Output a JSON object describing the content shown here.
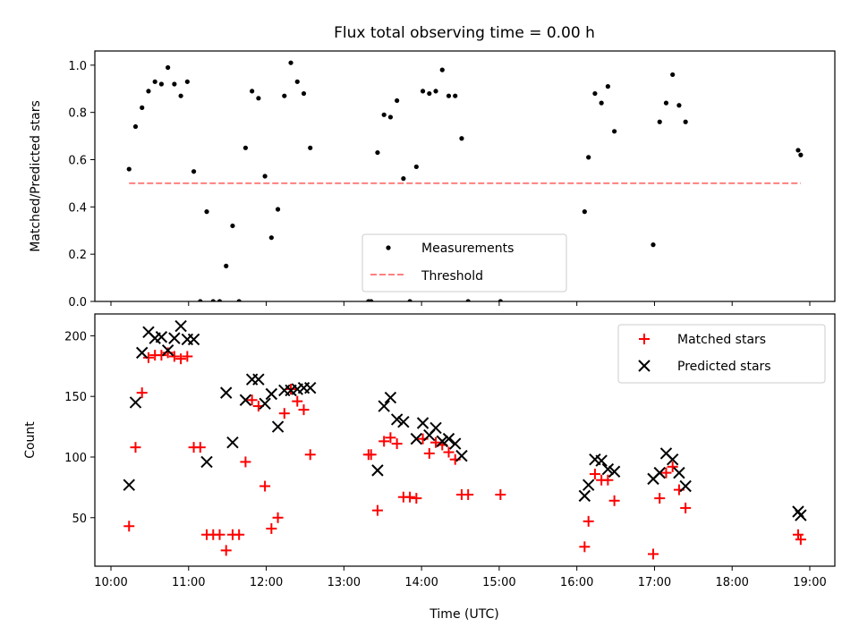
{
  "chart_data": [
    {
      "type": "scatter",
      "title": "Flux total observing time = 0.00 h",
      "ylabel": "Matched/Predicted stars",
      "ylim": [
        0,
        1.06
      ],
      "yticks": [
        0.0,
        0.2,
        0.4,
        0.6,
        0.8,
        1.0
      ],
      "yticklabels": [
        "0.0",
        "0.2",
        "0.4",
        "0.6",
        "0.8",
        "1.0"
      ],
      "xlim": [
        "10:00",
        "19:00"
      ],
      "legend_position": "lower-center",
      "series": [
        {
          "name": "Measurements",
          "marker": "dot",
          "color": "#000000",
          "points": [
            [
              "10:14",
              0.56
            ],
            [
              "10:19",
              0.74
            ],
            [
              "10:24",
              0.82
            ],
            [
              "10:29",
              0.89
            ],
            [
              "10:34",
              0.93
            ],
            [
              "10:39",
              0.92
            ],
            [
              "10:44",
              0.99
            ],
            [
              "10:49",
              0.92
            ],
            [
              "10:54",
              0.87
            ],
            [
              "10:59",
              0.93
            ],
            [
              "11:04",
              0.55
            ],
            [
              "11:09",
              0.0
            ],
            [
              "11:14",
              0.38
            ],
            [
              "11:19",
              0.0
            ],
            [
              "11:24",
              0.0
            ],
            [
              "11:29",
              0.15
            ],
            [
              "11:34",
              0.32
            ],
            [
              "11:39",
              0.0
            ],
            [
              "11:44",
              0.65
            ],
            [
              "11:49",
              0.89
            ],
            [
              "11:54",
              0.86
            ],
            [
              "11:59",
              0.53
            ],
            [
              "12:04",
              0.27
            ],
            [
              "12:09",
              0.39
            ],
            [
              "12:14",
              0.87
            ],
            [
              "12:19",
              1.01
            ],
            [
              "12:24",
              0.93
            ],
            [
              "12:29",
              0.88
            ],
            [
              "12:34",
              0.65
            ],
            [
              "13:19",
              0.0
            ],
            [
              "13:21",
              0.0
            ],
            [
              "13:26",
              0.63
            ],
            [
              "13:31",
              0.79
            ],
            [
              "13:36",
              0.78
            ],
            [
              "13:41",
              0.85
            ],
            [
              "13:46",
              0.52
            ],
            [
              "13:51",
              0.0
            ],
            [
              "13:56",
              0.57
            ],
            [
              "14:01",
              0.89
            ],
            [
              "14:06",
              0.88
            ],
            [
              "14:11",
              0.89
            ],
            [
              "14:16",
              0.98
            ],
            [
              "14:21",
              0.87
            ],
            [
              "14:26",
              0.87
            ],
            [
              "14:31",
              0.69
            ],
            [
              "14:36",
              0.0
            ],
            [
              "15:01",
              0.0
            ],
            [
              "16:06",
              0.38
            ],
            [
              "16:09",
              0.61
            ],
            [
              "16:14",
              0.88
            ],
            [
              "16:19",
              0.84
            ],
            [
              "16:24",
              0.91
            ],
            [
              "16:29",
              0.72
            ],
            [
              "16:59",
              0.24
            ],
            [
              "17:04",
              0.76
            ],
            [
              "17:09",
              0.84
            ],
            [
              "17:14",
              0.96
            ],
            [
              "17:19",
              0.83
            ],
            [
              "17:24",
              0.76
            ],
            [
              "18:51",
              0.64
            ],
            [
              "18:53",
              0.62
            ]
          ]
        },
        {
          "name": "Threshold",
          "marker": "dashed-line",
          "color": "#ff7f7f",
          "points": [
            [
              "10:14",
              0.5
            ],
            [
              "18:53",
              0.5
            ]
          ]
        }
      ]
    },
    {
      "type": "scatter",
      "xlabel": "Time (UTC)",
      "ylabel": "Count",
      "ylim": [
        10,
        218
      ],
      "yticks": [
        50,
        100,
        150,
        200
      ],
      "yticklabels": [
        "50",
        "100",
        "150",
        "200"
      ],
      "xlim": [
        "10:00",
        "19:00"
      ],
      "xticklabels": [
        "10:00",
        "11:00",
        "12:00",
        "13:00",
        "14:00",
        "15:00",
        "16:00",
        "17:00",
        "18:00",
        "19:00"
      ],
      "legend_position": "upper-right",
      "series": [
        {
          "name": "Matched stars",
          "marker": "plus",
          "color": "#ff0000",
          "points": [
            [
              "10:14",
              43
            ],
            [
              "10:19",
              108
            ],
            [
              "10:24",
              153
            ],
            [
              "10:29",
              182
            ],
            [
              "10:34",
              184
            ],
            [
              "10:39",
              184
            ],
            [
              "10:44",
              186
            ],
            [
              "10:49",
              183
            ],
            [
              "10:54",
              181
            ],
            [
              "10:59",
              183
            ],
            [
              "11:04",
              108
            ],
            [
              "11:09",
              108
            ],
            [
              "11:14",
              36
            ],
            [
              "11:19",
              36
            ],
            [
              "11:24",
              36
            ],
            [
              "11:29",
              23
            ],
            [
              "11:34",
              36
            ],
            [
              "11:39",
              36
            ],
            [
              "11:44",
              96
            ],
            [
              "11:49",
              147
            ],
            [
              "11:54",
              142
            ],
            [
              "11:59",
              76
            ],
            [
              "12:04",
              41
            ],
            [
              "12:09",
              50
            ],
            [
              "12:14",
              136
            ],
            [
              "12:19",
              156
            ],
            [
              "12:24",
              146
            ],
            [
              "12:29",
              139
            ],
            [
              "12:34",
              102
            ],
            [
              "13:19",
              102
            ],
            [
              "13:21",
              102
            ],
            [
              "13:26",
              56
            ],
            [
              "13:31",
              113
            ],
            [
              "13:36",
              116
            ],
            [
              "13:41",
              111
            ],
            [
              "13:46",
              67
            ],
            [
              "13:51",
              67
            ],
            [
              "13:56",
              66
            ],
            [
              "14:01",
              115
            ],
            [
              "14:06",
              103
            ],
            [
              "14:11",
              112
            ],
            [
              "14:16",
              110
            ],
            [
              "14:21",
              104
            ],
            [
              "14:26",
              98
            ],
            [
              "14:31",
              69
            ],
            [
              "14:36",
              69
            ],
            [
              "15:01",
              69
            ],
            [
              "16:06",
              26
            ],
            [
              "16:09",
              47
            ],
            [
              "16:14",
              86
            ],
            [
              "16:19",
              81
            ],
            [
              "16:24",
              81
            ],
            [
              "16:29",
              64
            ],
            [
              "16:59",
              20
            ],
            [
              "17:04",
              66
            ],
            [
              "17:09",
              87
            ],
            [
              "17:14",
              92
            ],
            [
              "17:19",
              73
            ],
            [
              "17:24",
              58
            ],
            [
              "18:51",
              36
            ],
            [
              "18:53",
              32
            ]
          ]
        },
        {
          "name": "Predicted stars",
          "marker": "x",
          "color": "#000000",
          "points": [
            [
              "10:14",
              77
            ],
            [
              "10:19",
              145
            ],
            [
              "10:24",
              186
            ],
            [
              "10:29",
              203
            ],
            [
              "10:34",
              198
            ],
            [
              "10:39",
              199
            ],
            [
              "10:44",
              188
            ],
            [
              "10:49",
              198
            ],
            [
              "10:54",
              208
            ],
            [
              "10:59",
              197
            ],
            [
              "11:04",
              197
            ],
            [
              "11:14",
              96
            ],
            [
              "11:29",
              153
            ],
            [
              "11:34",
              112
            ],
            [
              "11:44",
              147
            ],
            [
              "11:49",
              164
            ],
            [
              "11:54",
              164
            ],
            [
              "11:59",
              144
            ],
            [
              "12:04",
              152
            ],
            [
              "12:09",
              125
            ],
            [
              "12:14",
              155
            ],
            [
              "12:19",
              155
            ],
            [
              "12:24",
              156
            ],
            [
              "12:29",
              157
            ],
            [
              "12:34",
              157
            ],
            [
              "13:26",
              89
            ],
            [
              "13:31",
              142
            ],
            [
              "13:36",
              149
            ],
            [
              "13:41",
              131
            ],
            [
              "13:46",
              129
            ],
            [
              "13:56",
              115
            ],
            [
              "14:01",
              128
            ],
            [
              "14:06",
              118
            ],
            [
              "14:11",
              124
            ],
            [
              "14:16",
              113
            ],
            [
              "14:21",
              115
            ],
            [
              "14:26",
              111
            ],
            [
              "14:31",
              101
            ],
            [
              "16:06",
              68
            ],
            [
              "16:09",
              77
            ],
            [
              "16:14",
              98
            ],
            [
              "16:19",
              97
            ],
            [
              "16:24",
              90
            ],
            [
              "16:29",
              88
            ],
            [
              "16:59",
              82
            ],
            [
              "17:04",
              87
            ],
            [
              "17:09",
              103
            ],
            [
              "17:14",
              98
            ],
            [
              "17:19",
              87
            ],
            [
              "17:24",
              76
            ],
            [
              "18:51",
              55
            ],
            [
              "18:53",
              52
            ]
          ]
        }
      ]
    }
  ]
}
